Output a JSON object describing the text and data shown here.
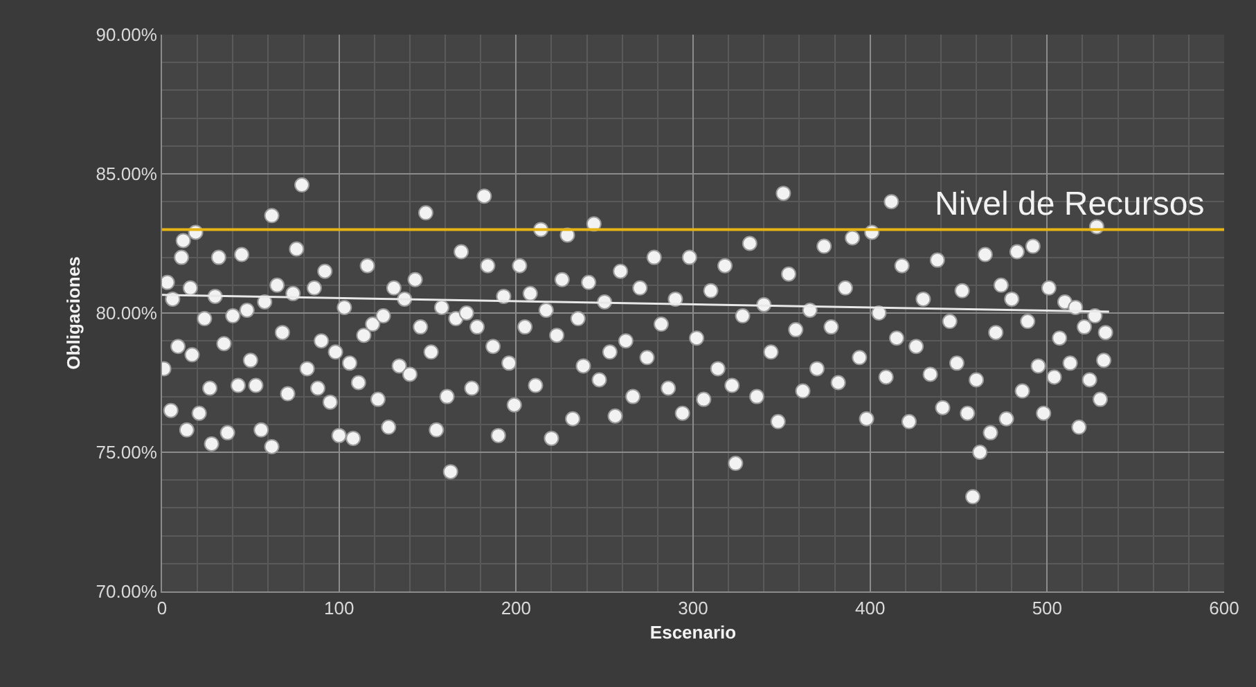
{
  "chart_data": {
    "type": "scatter",
    "xlabel": "Escenario",
    "ylabel": "Obligaciones",
    "xlim": [
      0,
      600
    ],
    "xticks": [
      0,
      100,
      200,
      300,
      400,
      500,
      600
    ],
    "ylim": [
      70,
      90
    ],
    "yticks": [
      {
        "value": 70,
        "label": "70.00%"
      },
      {
        "value": 75,
        "label": "75.00%"
      },
      {
        "value": 80,
        "label": "80.00%"
      },
      {
        "value": 85,
        "label": "85.00%"
      },
      {
        "value": 90,
        "label": "90.00%"
      }
    ],
    "grid": true,
    "marker": "circle",
    "ref_lines": [
      {
        "axis": "y",
        "value": 83,
        "label": "Nivel de Recursos",
        "color": "#e6b414"
      }
    ],
    "series": [
      {
        "color": "#f2f2f2",
        "x": [
          1,
          3,
          5,
          6,
          9,
          11,
          12,
          14,
          16,
          17,
          19,
          21,
          24,
          27,
          28,
          30,
          32,
          35,
          37,
          40,
          43,
          45,
          48,
          50,
          53,
          56,
          58,
          62,
          62,
          65,
          68,
          71,
          74,
          76,
          79,
          82,
          86,
          88,
          90,
          92,
          95,
          98,
          100,
          103,
          106,
          108,
          111,
          114,
          116,
          119,
          122,
          125,
          128,
          131,
          134,
          137,
          140,
          143,
          146,
          149,
          152,
          155,
          158,
          161,
          163,
          166,
          169,
          172,
          175,
          178,
          182,
          184,
          187,
          190,
          193,
          196,
          199,
          202,
          205,
          208,
          211,
          214,
          217,
          220,
          223,
          226,
          229,
          232,
          235,
          238,
          241,
          244,
          247,
          250,
          253,
          256,
          259,
          262,
          266,
          270,
          274,
          278,
          282,
          286,
          290,
          294,
          298,
          302,
          306,
          310,
          314,
          318,
          322,
          324,
          328,
          332,
          336,
          340,
          344,
          348,
          351,
          354,
          358,
          362,
          366,
          370,
          374,
          378,
          382,
          386,
          390,
          394,
          398,
          401,
          405,
          409,
          412,
          415,
          418,
          422,
          426,
          430,
          434,
          438,
          441,
          445,
          449,
          452,
          455,
          458,
          460,
          462,
          465,
          468,
          471,
          474,
          477,
          480,
          483,
          486,
          489,
          492,
          495,
          498,
          501,
          504,
          507,
          510,
          513,
          516,
          518,
          521,
          524,
          527,
          528,
          530,
          532,
          533
        ],
        "values": [
          78.0,
          81.1,
          76.5,
          80.5,
          78.8,
          82.0,
          82.6,
          75.8,
          80.9,
          78.5,
          82.9,
          76.4,
          79.8,
          77.3,
          75.3,
          80.6,
          82.0,
          78.9,
          75.7,
          79.9,
          77.4,
          82.1,
          80.1,
          78.3,
          77.4,
          75.8,
          80.4,
          75.2,
          83.5,
          81.0,
          79.3,
          77.1,
          80.7,
          82.3,
          84.6,
          78.0,
          80.9,
          77.3,
          79.0,
          81.5,
          76.8,
          78.6,
          75.6,
          80.2,
          78.2,
          75.5,
          77.5,
          79.2,
          81.7,
          79.6,
          76.9,
          79.9,
          75.9,
          80.9,
          78.1,
          80.5,
          77.8,
          81.2,
          79.5,
          83.6,
          78.6,
          75.8,
          80.2,
          77.0,
          74.3,
          79.8,
          82.2,
          80.0,
          77.3,
          79.5,
          84.2,
          81.7,
          78.8,
          75.6,
          80.6,
          78.2,
          76.7,
          81.7,
          79.5,
          80.7,
          77.4,
          83.0,
          80.1,
          75.5,
          79.2,
          81.2,
          82.8,
          76.2,
          79.8,
          78.1,
          81.1,
          83.2,
          77.6,
          80.4,
          78.6,
          76.3,
          81.5,
          79.0,
          77.0,
          80.9,
          78.4,
          82.0,
          79.6,
          77.3,
          80.5,
          76.4,
          82.0,
          79.1,
          76.9,
          80.8,
          78.0,
          81.7,
          77.4,
          74.6,
          79.9,
          82.5,
          77.0,
          80.3,
          78.6,
          76.1,
          84.3,
          81.4,
          79.4,
          77.2,
          80.1,
          78.0,
          82.4,
          79.5,
          77.5,
          80.9,
          82.7,
          78.4,
          76.2,
          82.9,
          80.0,
          77.7,
          84.0,
          79.1,
          81.7,
          76.1,
          78.8,
          80.5,
          77.8,
          81.9,
          76.6,
          79.7,
          78.2,
          80.8,
          76.4,
          73.4,
          77.6,
          75.0,
          82.1,
          75.7,
          79.3,
          81.0,
          76.2,
          80.5,
          82.2,
          77.2,
          79.7,
          82.4,
          78.1,
          76.4,
          80.9,
          77.7,
          79.1,
          80.4,
          78.2,
          80.2,
          75.9,
          79.5,
          77.6,
          79.9,
          83.1,
          76.9,
          78.3,
          79.3
        ]
      },
      {
        "type": "line",
        "color": "#e8e8e8",
        "marker": "none",
        "x": [
          0,
          535
        ],
        "values": [
          80.65,
          80.05
        ]
      }
    ]
  }
}
